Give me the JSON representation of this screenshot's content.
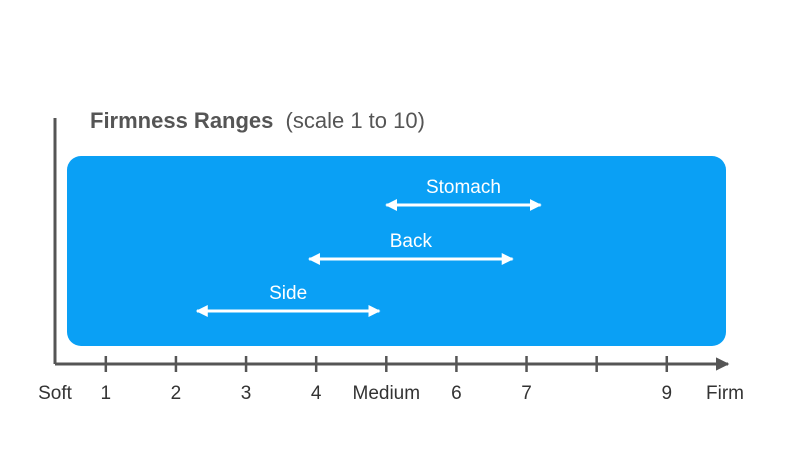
{
  "chart_data": {
    "type": "range",
    "title": "Firmness Ranges",
    "subtitle": "(scale 1 to 10)",
    "x_min_label": "Soft",
    "x_max_label": "Firm",
    "xlim": [
      0,
      10
    ],
    "ticks": [
      {
        "value": 1,
        "label": "1"
      },
      {
        "value": 2,
        "label": "2"
      },
      {
        "value": 3,
        "label": "3"
      },
      {
        "value": 4,
        "label": "4"
      },
      {
        "value": 5,
        "label": "Medium"
      },
      {
        "value": 6,
        "label": "6"
      },
      {
        "value": 7,
        "label": "7"
      },
      {
        "value": 8,
        "label": ""
      },
      {
        "value": 9,
        "label": "9"
      }
    ],
    "ranges": [
      {
        "name": "Stomach",
        "start": 5.0,
        "end": 7.2
      },
      {
        "name": "Back",
        "start": 3.9,
        "end": 6.8
      },
      {
        "name": "Side",
        "start": 2.3,
        "end": 4.9
      }
    ],
    "colors": {
      "panel": "#0aa0f5",
      "axis": "#555555",
      "arrow": "#ffffff"
    }
  }
}
